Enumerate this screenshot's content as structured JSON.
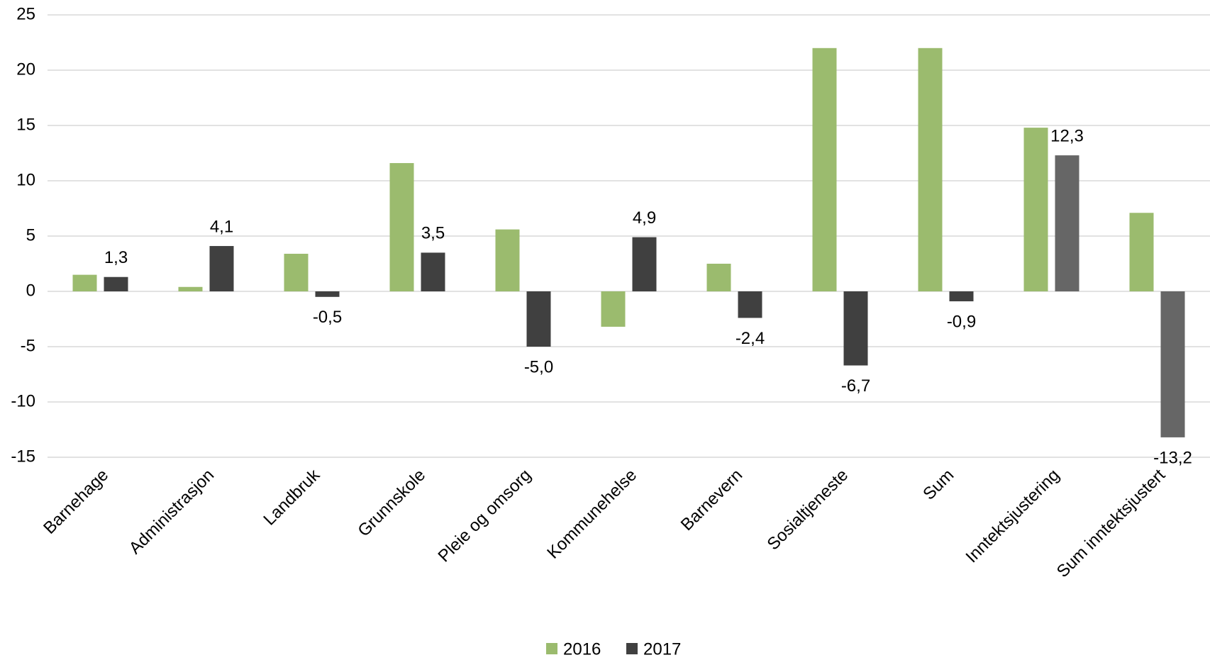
{
  "chart_data": {
    "type": "bar",
    "categories": [
      "Barnehage",
      "Administrasjon",
      "Landbruk",
      "Grunnskole",
      "Pleie og omsorg",
      "Kommunehelse",
      "Barnevern",
      "Sosialtjeneste",
      "Sum",
      "Inntektsjustering",
      "Sum inntektsjustert"
    ],
    "series": [
      {
        "name": "2016",
        "color": "#9bbb6e",
        "values": [
          1.5,
          0.4,
          3.4,
          11.6,
          5.6,
          -3.2,
          2.5,
          22,
          22,
          14.8,
          7.1
        ]
      },
      {
        "name": "2017",
        "color": "#404040",
        "colors": [
          "#404040",
          "#404040",
          "#404040",
          "#404040",
          "#404040",
          "#404040",
          "#404040",
          "#404040",
          "#404040",
          "#666666",
          "#666666"
        ],
        "values": [
          1.3,
          4.1,
          -0.5,
          3.5,
          -5.0,
          4.9,
          -2.4,
          -6.7,
          -0.9,
          12.3,
          -13.2
        ],
        "value_labels": [
          "1,3",
          "4,1",
          "-0,5",
          "3,5",
          "-5,0",
          "4,9",
          "-2,4",
          "-6,7",
          "-0,9",
          "12,3",
          "-13,2"
        ]
      }
    ],
    "ylim": [
      -15,
      25
    ],
    "yticks": [
      -15,
      -10,
      -5,
      0,
      5,
      10,
      15,
      20,
      25
    ],
    "grid": true,
    "legend": "bottom"
  }
}
